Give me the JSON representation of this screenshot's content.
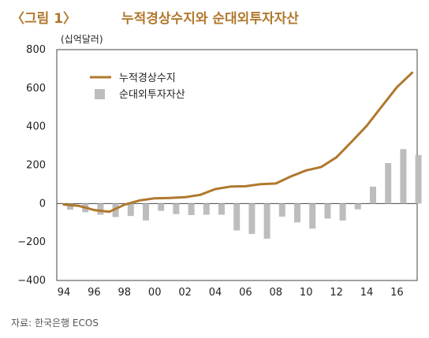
{
  "figure": {
    "label": "〈그림 1〉",
    "title": "누적경상수지와 순대외투자자산",
    "source": "자료: 한국은행 ECOS"
  },
  "chart_data": {
    "type": "line+bar",
    "unit_label": "(십억달러)",
    "x": [
      1994,
      1995,
      1996,
      1997,
      1998,
      1999,
      2000,
      2001,
      2002,
      2003,
      2004,
      2005,
      2006,
      2007,
      2008,
      2009,
      2010,
      2011,
      2012,
      2013,
      2014,
      2015,
      2016,
      2017
    ],
    "x_tick_labels": [
      "94",
      "96",
      "98",
      "00",
      "02",
      "04",
      "06",
      "08",
      "10",
      "12",
      "14",
      "16"
    ],
    "x_tick_years": [
      1994,
      1996,
      1998,
      2000,
      2002,
      2004,
      2006,
      2008,
      2010,
      2012,
      2014,
      2016
    ],
    "ylim": [
      -400,
      800
    ],
    "y_ticks": [
      800,
      600,
      400,
      200,
      0,
      -200,
      -400
    ],
    "y_tick_labels": [
      "800",
      "600",
      "400",
      "200",
      "0",
      "−200",
      "−400"
    ],
    "grid": false,
    "legend_position": "top-left",
    "series": [
      {
        "name": "누적경상수지",
        "type": "line",
        "color": "#b0782c",
        "values": [
          -5,
          -12,
          -34,
          -43,
          -6,
          16,
          27,
          29,
          33,
          45,
          75,
          88,
          90,
          101,
          104,
          141,
          172,
          190,
          240,
          321,
          404,
          505,
          605,
          680
        ]
      },
      {
        "name": "순대외투자자산",
        "type": "bar",
        "color": "#bdbdbd",
        "values": [
          -32,
          -45,
          -58,
          -70,
          -65,
          -88,
          -38,
          -55,
          -60,
          -58,
          -58,
          -140,
          -158,
          -183,
          -68,
          -98,
          -130,
          -78,
          -88,
          -30,
          88,
          210,
          283,
          252
        ]
      }
    ]
  }
}
